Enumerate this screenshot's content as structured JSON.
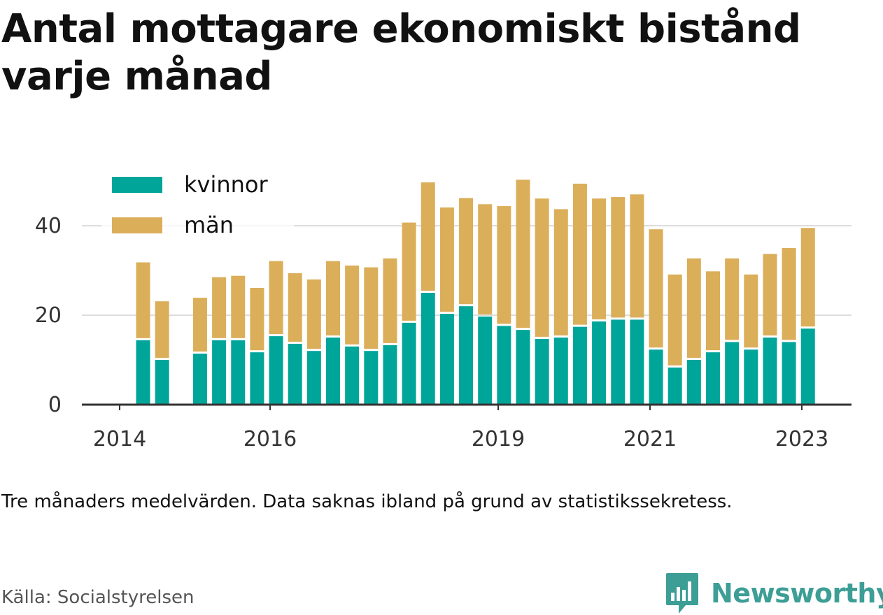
{
  "title": "Antal mottagare ekonomiskt bistånd varje månad",
  "note": "Tre månaders medelvärden. Data saknas ibland på grund av statistikssekretess.",
  "source": "Källa: Socialstyrelsen",
  "brand": {
    "name": "Newsworthy",
    "icon": "newsworthy-bar-chart-icon"
  },
  "colors": {
    "kvinnor": "#00a59a",
    "man": "#dbae5a",
    "grid": "#dddddd",
    "axis": "#333333",
    "text": "#333333"
  },
  "chart_data": {
    "type": "bar",
    "stacked": true,
    "x_label": "",
    "y_label": "",
    "ylim": [
      0,
      50
    ],
    "yticks": [
      0,
      20,
      40
    ],
    "grid": "horizontal",
    "legend_position": "top-left",
    "xticks": [
      "2014",
      "2016",
      "2019",
      "2021",
      "2023"
    ],
    "categories": [
      "2014-Q2",
      "2014-Q3",
      "2014-Q4",
      "2015-Q1",
      "2015-Q2",
      "2015-Q3",
      "2015-Q4",
      "2016-Q1",
      "2016-Q2",
      "2016-Q3",
      "2016-Q4",
      "2017-Q1",
      "2017-Q2",
      "2017-Q3",
      "2017-Q4",
      "2018-Q1",
      "2018-Q2",
      "2018-Q3",
      "2018-Q4",
      "2019-Q1",
      "2019-Q2",
      "2019-Q3",
      "2019-Q4",
      "2020-Q1",
      "2020-Q2",
      "2020-Q3",
      "2020-Q4",
      "2021-Q1",
      "2021-Q2",
      "2021-Q3",
      "2021-Q4",
      "2022-Q1",
      "2022-Q2",
      "2022-Q3",
      "2022-Q4",
      "2023-Q1",
      "2023-Q2"
    ],
    "series": [
      {
        "name": "kvinnor",
        "color": "#00a59a",
        "values": [
          14.4,
          10.0,
          null,
          11.4,
          14.4,
          14.4,
          11.7,
          15.3,
          13.6,
          12.0,
          15.0,
          13.0,
          12.0,
          13.3,
          18.3,
          25.0,
          20.3,
          22.0,
          19.7,
          17.6,
          16.7,
          14.7,
          15.0,
          17.4,
          18.6,
          19.0,
          19.0,
          12.3,
          8.3,
          10.0,
          11.7,
          14.0,
          12.3,
          15.0,
          14.0,
          17.0,
          null
        ],
        "note_last": ""
      },
      {
        "name": "män",
        "color": "#dbae5a",
        "values": [
          17.4,
          13.1,
          null,
          12.5,
          14.1,
          14.4,
          14.4,
          16.8,
          15.8,
          16.0,
          17.1,
          18.1,
          18.7,
          19.4,
          22.4,
          24.7,
          23.8,
          24.2,
          25.1,
          26.8,
          33.6,
          31.4,
          28.7,
          32.0,
          27.5,
          27.4,
          28.0,
          26.9,
          20.8,
          22.7,
          18.1,
          18.7,
          16.8,
          18.7,
          21.0,
          22.5,
          null
        ]
      }
    ]
  }
}
